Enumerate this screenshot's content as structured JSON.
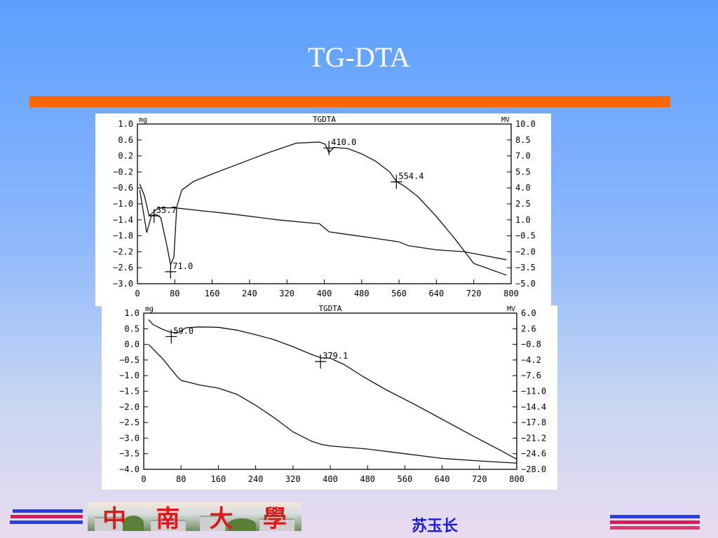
{
  "slide": {
    "title": "TG-DTA",
    "accent_color": "#fe6702",
    "author": "苏玉长",
    "logo_text": [
      "中",
      "南",
      "大",
      "學"
    ]
  },
  "chart_data": [
    {
      "type": "line",
      "title": "TGDTA",
      "left_unit": "mg",
      "right_unit": "MV",
      "x_ticks": [
        0,
        80,
        160,
        240,
        320,
        400,
        480,
        560,
        640,
        720,
        800
      ],
      "left_ticks": [
        "1.0",
        "0.6",
        "0.2",
        "−0.2",
        "−0.6",
        "−1.0",
        "−1.4",
        "−1.8",
        "−2.2",
        "−2.6",
        "−3.0"
      ],
      "right_ticks": [
        "10.0",
        "8.5",
        "7.0",
        "5.5",
        "4.0",
        "2.5",
        "1.0",
        "−0.5",
        "−2.0",
        "−3.5",
        "−5.0"
      ],
      "xlim": [
        0,
        800
      ],
      "ylim_left": [
        -3.0,
        1.0
      ],
      "ylim_right": [
        -5.0,
        10.0
      ],
      "series": [
        {
          "axis": "right",
          "points": [
            [
              5,
              3.8
            ],
            [
              20,
              -0.2
            ],
            [
              30,
              1.4
            ],
            [
              40,
              1.5
            ],
            [
              50,
              1.2
            ],
            [
              62,
              -1.2
            ],
            [
              71,
              -3.2
            ],
            [
              78,
              -2.5
            ],
            [
              84,
              2.2
            ],
            [
              95,
              3.8
            ],
            [
              120,
              4.6
            ],
            [
              160,
              5.3
            ],
            [
              220,
              6.3
            ],
            [
              280,
              7.3
            ],
            [
              340,
              8.2
            ],
            [
              390,
              8.3
            ],
            [
              402,
              8.1
            ],
            [
              410,
              7.3
            ],
            [
              420,
              7.8
            ],
            [
              450,
              7.7
            ],
            [
              480,
              7.2
            ],
            [
              510,
              6.5
            ],
            [
              540,
              5.5
            ],
            [
              554.4,
              4.6
            ],
            [
              570,
              4.2
            ],
            [
              600,
              3.2
            ],
            [
              640,
              1.3
            ],
            [
              680,
              -0.8
            ],
            [
              720,
              -3.1
            ],
            [
              790,
              -4.2
            ]
          ]
        },
        {
          "axis": "left",
          "points": [
            [
              5,
              -0.5
            ],
            [
              15,
              -0.8
            ],
            [
              25,
              -1.3
            ],
            [
              35,
              -1.2
            ],
            [
              45,
              -1.1
            ],
            [
              60,
              -1.1
            ],
            [
              70,
              -1.1
            ],
            [
              80,
              -1.1
            ],
            [
              120,
              -1.15
            ],
            [
              200,
              -1.25
            ],
            [
              300,
              -1.4
            ],
            [
              390,
              -1.5
            ],
            [
              410,
              -1.7
            ],
            [
              440,
              -1.75
            ],
            [
              500,
              -1.85
            ],
            [
              560,
              -1.95
            ],
            [
              580,
              -2.05
            ],
            [
              640,
              -2.15
            ],
            [
              700,
              -2.2
            ],
            [
              790,
              -2.4
            ]
          ]
        }
      ],
      "annotations": [
        {
          "label": "35.7",
          "x": 35.7,
          "y": -1.3,
          "axis": "left"
        },
        {
          "label": "71.0",
          "x": 71,
          "y": -2.7,
          "axis": "left"
        },
        {
          "label": "410.0",
          "x": 410,
          "y": 0.4,
          "axis": "left"
        },
        {
          "label": "554.4",
          "x": 554.4,
          "y": -0.45,
          "axis": "left"
        }
      ]
    },
    {
      "type": "line",
      "title": "TGDTA",
      "left_unit": "mg",
      "right_unit": "MV",
      "x_ticks": [
        0,
        80,
        160,
        240,
        320,
        400,
        480,
        560,
        640,
        720,
        800
      ],
      "left_ticks": [
        "1.0",
        "0.5",
        "0.0",
        "−0.5",
        "−1.0",
        "−1.5",
        "−2.0",
        "−2.5",
        "−3.0",
        "−3.5",
        "−4.0"
      ],
      "right_ticks": [
        "6.0",
        "2.6",
        "−0.8",
        "−4.2",
        "−7.6",
        "−11.0",
        "−14.4",
        "−17.8",
        "−21.2",
        "−24.6",
        "−28.0"
      ],
      "xlim": [
        0,
        800
      ],
      "ylim_left": [
        -4.0,
        1.0
      ],
      "ylim_right": [
        -28.0,
        6.0
      ],
      "series": [
        {
          "axis": "right",
          "points": [
            [
              10,
              4.6
            ],
            [
              20,
              3.5
            ],
            [
              40,
              2.5
            ],
            [
              59,
              1.8
            ],
            [
              75,
              1.8
            ],
            [
              90,
              2.8
            ],
            [
              120,
              3.0
            ],
            [
              160,
              2.9
            ],
            [
              200,
              2.3
            ],
            [
              240,
              1.3
            ],
            [
              280,
              0.2
            ],
            [
              320,
              -1.3
            ],
            [
              360,
              -3.0
            ],
            [
              379,
              -3.7
            ],
            [
              400,
              -3.8
            ],
            [
              430,
              -5.2
            ],
            [
              470,
              -7.8
            ],
            [
              520,
              -10.7
            ],
            [
              580,
              -13.8
            ],
            [
              640,
              -17.1
            ],
            [
              700,
              -20.4
            ],
            [
              760,
              -23.6
            ],
            [
              800,
              -25.8
            ]
          ]
        },
        {
          "axis": "left",
          "points": [
            [
              10,
              0.0
            ],
            [
              40,
              -0.45
            ],
            [
              70,
              -1.0
            ],
            [
              80,
              -1.15
            ],
            [
              120,
              -1.3
            ],
            [
              160,
              -1.4
            ],
            [
              200,
              -1.6
            ],
            [
              240,
              -1.95
            ],
            [
              280,
              -2.35
            ],
            [
              320,
              -2.8
            ],
            [
              360,
              -3.1
            ],
            [
              380,
              -3.2
            ],
            [
              400,
              -3.25
            ],
            [
              480,
              -3.35
            ],
            [
              560,
              -3.5
            ],
            [
              640,
              -3.65
            ],
            [
              720,
              -3.73
            ],
            [
              800,
              -3.8
            ]
          ]
        }
      ],
      "annotations": [
        {
          "label": "59.0",
          "x": 59,
          "y": 0.25,
          "axis": "left"
        },
        {
          "label": "379.1",
          "x": 379.1,
          "y": -0.55,
          "axis": "left"
        }
      ]
    }
  ]
}
